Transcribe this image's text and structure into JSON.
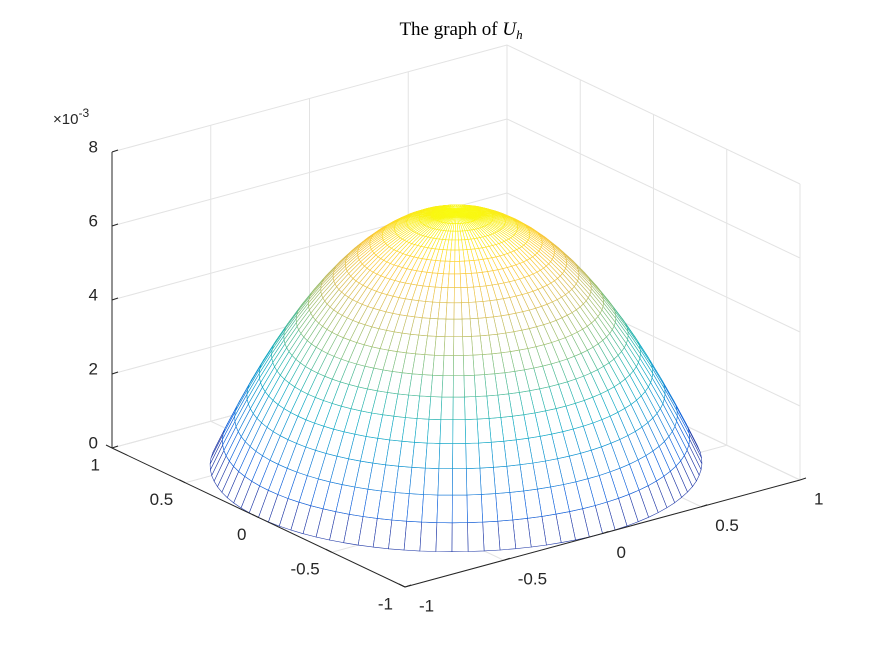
{
  "chart_data": {
    "type": "surface",
    "title": {
      "text": "The graph of",
      "symbol": "U",
      "subscript": "h"
    },
    "z_multiplier": {
      "base": "×10",
      "exponent": "-3"
    },
    "xlim": [
      -1,
      1
    ],
    "xticks": [
      -1,
      -0.5,
      0,
      0.5,
      1
    ],
    "ylim": [
      -1,
      1
    ],
    "yticks": [
      -1,
      -0.5,
      0,
      0.5,
      1
    ],
    "zlim": [
      0,
      8
    ],
    "zticks": [
      0,
      2,
      4,
      6,
      8
    ],
    "grid": true,
    "colormap": [
      "#352a87",
      "#0f5cdd",
      "#1481d6",
      "#06a4ca",
      "#2eb7a4",
      "#87bf77",
      "#d1bb59",
      "#fec832",
      "#f9fb0e"
    ],
    "surface": {
      "r": [
        0,
        0.05,
        0.1,
        0.15,
        0.2,
        0.25,
        0.3,
        0.35,
        0.4,
        0.45,
        0.5,
        0.55,
        0.6,
        0.65,
        0.7,
        0.75,
        0.8,
        0.85,
        0.9,
        0.95,
        1
      ],
      "z": [
        6.8,
        6.783,
        6.732,
        6.647,
        6.528,
        6.375,
        6.188,
        5.967,
        5.712,
        5.423,
        5.1,
        4.743,
        4.352,
        3.927,
        3.468,
        2.975,
        2.448,
        1.887,
        1.292,
        0.663,
        0
      ]
    }
  }
}
